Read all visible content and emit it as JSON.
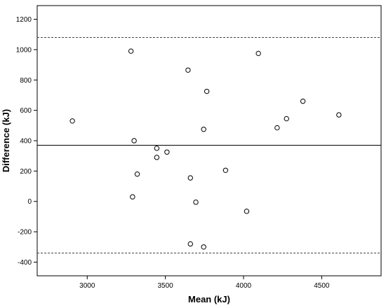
{
  "chart_data": {
    "type": "scatter",
    "title": "",
    "xlabel": "Mean (kJ)",
    "ylabel": "Difference (kJ)",
    "xlim": [
      2680,
      4880
    ],
    "ylim": [
      -490,
      1290
    ],
    "x_ticks": [
      3000,
      3500,
      4000,
      4500
    ],
    "y_ticks": [
      -400,
      -200,
      0,
      200,
      400,
      600,
      800,
      1000,
      1200
    ],
    "grid": false,
    "legend": "none",
    "reference_lines": {
      "mean_difference": 370,
      "upper_limit": 1080,
      "lower_limit": -340
    },
    "series": [
      {
        "marker": "open-circle",
        "points": [
          {
            "x": 2905,
            "y": 530
          },
          {
            "x": 3280,
            "y": 990
          },
          {
            "x": 3300,
            "y": 400
          },
          {
            "x": 3320,
            "y": 180
          },
          {
            "x": 3290,
            "y": 30
          },
          {
            "x": 3445,
            "y": 350
          },
          {
            "x": 3445,
            "y": 290
          },
          {
            "x": 3510,
            "y": 325
          },
          {
            "x": 3645,
            "y": 865
          },
          {
            "x": 3660,
            "y": 155
          },
          {
            "x": 3660,
            "y": -280
          },
          {
            "x": 3695,
            "y": -5
          },
          {
            "x": 3745,
            "y": 475
          },
          {
            "x": 3745,
            "y": -300
          },
          {
            "x": 3765,
            "y": 725
          },
          {
            "x": 3885,
            "y": 205
          },
          {
            "x": 4020,
            "y": -65
          },
          {
            "x": 4095,
            "y": 975
          },
          {
            "x": 4215,
            "y": 485
          },
          {
            "x": 4275,
            "y": 545
          },
          {
            "x": 4380,
            "y": 660
          },
          {
            "x": 4610,
            "y": 570
          }
        ]
      }
    ]
  }
}
